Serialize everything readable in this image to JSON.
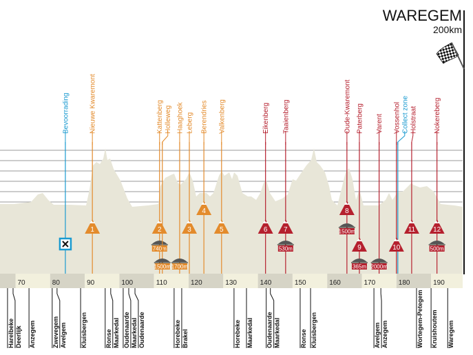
{
  "finish": {
    "town": "WAREGEM",
    "distance": "200km",
    "icon": "checkered-flag-icon"
  },
  "colors": {
    "flemish": "#e38b2c",
    "final": "#b5202e",
    "feed": "#1a9ad0",
    "profile": "#e8e6d8",
    "band_dark": "#d6d4c6",
    "band_light": "#f2f0dd"
  },
  "km_axis": {
    "labels": [
      "70",
      "80",
      "90",
      "100",
      "110",
      "120",
      "130",
      "140",
      "150",
      "160",
      "170",
      "180",
      "190"
    ]
  },
  "feed_zones": [
    {
      "label": "Bevoorrading",
      "km": 84.4,
      "icon": "cutlery-icon"
    },
    {
      "label": "Collect zone",
      "km": 180.4
    }
  ],
  "points": [
    {
      "label": "Nieuwe Kwaremont",
      "km": 92.2,
      "color": "flemish",
      "climb": "1"
    },
    {
      "label": "Kattenberg",
      "km": 111.6,
      "color": "flemish",
      "climb": "2",
      "cobbles": "740m"
    },
    {
      "label": "Holleweg",
      "km": 112.4,
      "color": "flemish",
      "cobbles": "1500m"
    },
    {
      "label": "Haaghoek",
      "km": 117.4,
      "color": "flemish",
      "cobbles": "1700m"
    },
    {
      "label": "Leberg",
      "km": 120.2,
      "color": "flemish",
      "climb": "3"
    },
    {
      "label": "Berendries",
      "km": 124.4,
      "color": "flemish",
      "climb": "4"
    },
    {
      "label": "Valkenberg",
      "km": 129.5,
      "color": "flemish",
      "climb": "5"
    },
    {
      "label": "Eikenberg",
      "km": 142.2,
      "color": "final",
      "climb": "6"
    },
    {
      "label": "Taaienberg",
      "km": 148.0,
      "color": "final",
      "climb": "7",
      "cobbles": "530m"
    },
    {
      "label": "Oude-Kwaremont",
      "km": 165.7,
      "color": "final",
      "climb": "8",
      "cobbles": "1500m"
    },
    {
      "label": "Paterberg",
      "km": 169.3,
      "color": "final",
      "climb": "9",
      "cobbles": "365m"
    },
    {
      "label": "Varent",
      "km": 175.0,
      "color": "final",
      "cobbles": "2000m"
    },
    {
      "label": "Vossenhol",
      "km": 180.0,
      "color": "final",
      "climb": "10"
    },
    {
      "label": "Holstraat",
      "km": 184.4,
      "color": "final",
      "climb": "11"
    },
    {
      "label": "Nokereberg",
      "km": 191.7,
      "color": "final",
      "climb": "12",
      "cobbles": "500m"
    }
  ],
  "towns": [
    {
      "name": "Harelbeke",
      "km": 67.7
    },
    {
      "name": "Deerlijk",
      "km": 69.3
    },
    {
      "name": "Anzegem",
      "km": 73.9
    },
    {
      "name": "Zwevegem",
      "km": 80.6
    },
    {
      "name": "Avelgem",
      "km": 82.0
    },
    {
      "name": "Kluisbergen",
      "km": 88.8
    },
    {
      "name": "Ronse",
      "km": 95.9
    },
    {
      "name": "Maarkedal",
      "km": 97.5
    },
    {
      "name": "Oudenaarde",
      "km": 101.1
    },
    {
      "name": "Maarkedal",
      "km": 102.7
    },
    {
      "name": "Oudenaarde",
      "km": 104.5
    },
    {
      "name": "Horebeke",
      "km": 115.8
    },
    {
      "name": "Brakel",
      "km": 118.0
    },
    {
      "name": "Horebeke",
      "km": 133.1
    },
    {
      "name": "Maarkedal",
      "km": 136.7
    },
    {
      "name": "Oudenaarde",
      "km": 142.4
    },
    {
      "name": "Maarkedal",
      "km": 143.6
    },
    {
      "name": "Ronse",
      "km": 152.2
    },
    {
      "name": "Kluisbergen",
      "km": 155.2
    },
    {
      "name": "Avelgem",
      "km": 173.5
    },
    {
      "name": "Anzegem",
      "km": 175.5
    },
    {
      "name": "Wortegem-Petegem",
      "km": 185.8
    },
    {
      "name": "Kruishoutem",
      "km": 190.0
    },
    {
      "name": "Waregem",
      "km": 194.8
    }
  ]
}
